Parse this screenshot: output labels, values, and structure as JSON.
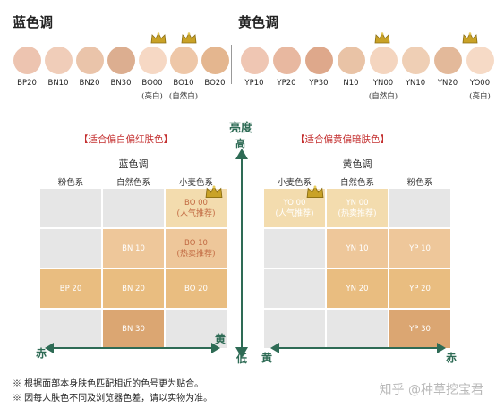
{
  "top": {
    "blue_title": "蓝色调",
    "yellow_title": "黄色调",
    "blue_swatches": [
      {
        "code": "BP20",
        "color": "#edc4b0",
        "sub": ""
      },
      {
        "code": "BN10",
        "color": "#f0cdb9",
        "sub": ""
      },
      {
        "code": "BN20",
        "color": "#eac4aa",
        "sub": ""
      },
      {
        "code": "BN30",
        "color": "#dcae90",
        "sub": ""
      },
      {
        "code": "BO00",
        "color": "#f6d8c4",
        "sub": "(亮白)"
      },
      {
        "code": "BO10",
        "color": "#eec7a8",
        "sub": "(自然白)"
      },
      {
        "code": "BO20",
        "color": "#e4b68f",
        "sub": ""
      }
    ],
    "yellow_swatches": [
      {
        "code": "YP10",
        "color": "#efc6b3",
        "sub": ""
      },
      {
        "code": "YP20",
        "color": "#e8b8a0",
        "sub": ""
      },
      {
        "code": "YP30",
        "color": "#dea88b",
        "sub": ""
      },
      {
        "code": "N10",
        "color": "#e9c3a6",
        "sub": ""
      },
      {
        "code": "YN00",
        "color": "#f4d5bf",
        "sub": "(自然白)"
      },
      {
        "code": "YN10",
        "color": "#efcfb5",
        "sub": ""
      },
      {
        "code": "YN20",
        "color": "#e3b99a",
        "sub": ""
      },
      {
        "code": "YO00",
        "color": "#f6dac6",
        "sub": "(亮白)"
      }
    ]
  },
  "axis": {
    "brightness": "亮度",
    "high": "高",
    "low": "低",
    "red": "赤",
    "yellow": "黄"
  },
  "left_grid": {
    "bracket": "【适合偏白偏红肤色】",
    "title": "蓝色调",
    "title_bg": "#d3e4f3",
    "columns": [
      "粉色系",
      "自然色系",
      "小麦色系"
    ],
    "cells": [
      {
        "row": 0,
        "col": 2,
        "line1": "BO 00",
        "line2": "(人气推荐)",
        "color": "#f3dcae",
        "text_color": "#c26a42"
      },
      {
        "row": 1,
        "col": 1,
        "line1": "BN 10",
        "line2": "",
        "color": "#eec79a",
        "text_color": "#ffffff"
      },
      {
        "row": 1,
        "col": 2,
        "line1": "BO 10",
        "line2": "(热卖推荐)",
        "color": "#eec79a",
        "text_color": "#c26a42"
      },
      {
        "row": 2,
        "col": 0,
        "line1": "BP 20",
        "line2": "",
        "color": "#e9bd80",
        "text_color": "#ffffff"
      },
      {
        "row": 2,
        "col": 1,
        "line1": "BN 20",
        "line2": "",
        "color": "#e9bd80",
        "text_color": "#ffffff"
      },
      {
        "row": 2,
        "col": 2,
        "line1": "BO 20",
        "line2": "",
        "color": "#e9bd80",
        "text_color": "#ffffff"
      },
      {
        "row": 3,
        "col": 1,
        "line1": "BN 30",
        "line2": "",
        "color": "#dba672",
        "text_color": "#ffffff"
      }
    ]
  },
  "right_grid": {
    "bracket": "【适合偏黄偏暗肤色】",
    "title": "黄色调",
    "title_bg": "#faf2bf",
    "columns": [
      "小麦色系",
      "自然色系",
      "粉色系"
    ],
    "cells": [
      {
        "row": 0,
        "col": 0,
        "line1": "YO 00",
        "line2": "(人气推荐)",
        "color": "#f3dcae",
        "text_color": "#ffffff"
      },
      {
        "row": 0,
        "col": 1,
        "line1": "YN 00",
        "line2": "(热卖推荐)",
        "color": "#f3dcae",
        "text_color": "#ffffff"
      },
      {
        "row": 1,
        "col": 1,
        "line1": "YN 10",
        "line2": "",
        "color": "#eec79a",
        "text_color": "#ffffff"
      },
      {
        "row": 1,
        "col": 2,
        "line1": "YP 10",
        "line2": "",
        "color": "#eec79a",
        "text_color": "#ffffff"
      },
      {
        "row": 2,
        "col": 1,
        "line1": "YN 20",
        "line2": "",
        "color": "#e9bd80",
        "text_color": "#ffffff"
      },
      {
        "row": 2,
        "col": 2,
        "line1": "YP 20",
        "line2": "",
        "color": "#e9bd80",
        "text_color": "#ffffff"
      },
      {
        "row": 3,
        "col": 2,
        "line1": "YP 30",
        "line2": "",
        "color": "#dba672",
        "text_color": "#ffffff"
      }
    ]
  },
  "empty_cell_color": "#e6e6e6",
  "notes": [
    "※ 根据面部本身肤色匹配相近的色号更为贴合。",
    "※ 因每人肤色不同及浏览器色差，请以实物为准。"
  ],
  "watermark": "知乎 @种草挖宝君"
}
